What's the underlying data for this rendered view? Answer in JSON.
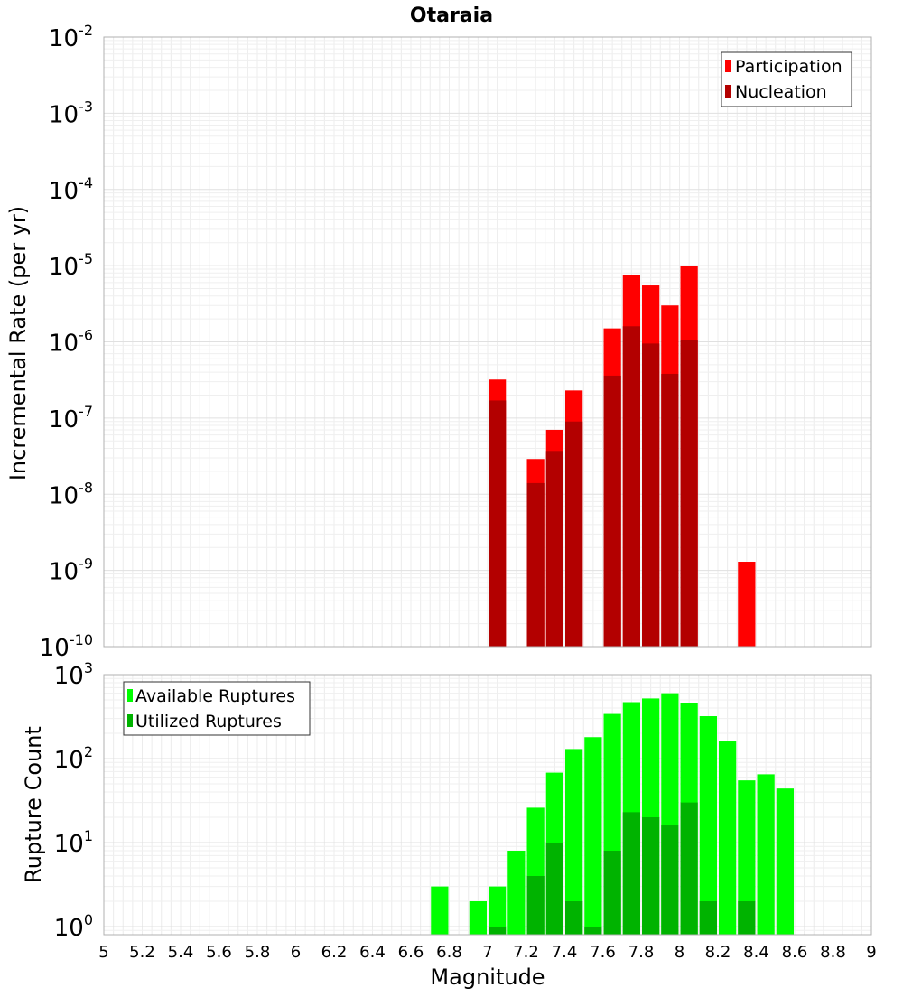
{
  "chart_data": [
    {
      "type": "bar",
      "title": "Otaraia",
      "xlabel": "",
      "ylabel": "Incremental Rate (per yr)",
      "yscale": "log",
      "ylim": [
        1e-10,
        0.01
      ],
      "xlim": [
        5,
        9
      ],
      "grid": true,
      "legend": {
        "placement": "top-right",
        "entries": [
          "Participation",
          "Nucleation"
        ]
      },
      "x": [
        7.05,
        7.25,
        7.35,
        7.45,
        7.65,
        7.75,
        7.85,
        7.95,
        8.05,
        8.35
      ],
      "series": [
        {
          "name": "Participation",
          "color": "#ff0000",
          "values": [
            3.2e-07,
            2.9e-08,
            7e-08,
            2.3e-07,
            1.5e-06,
            7.5e-06,
            5.5e-06,
            3e-06,
            1e-05,
            1.3e-09
          ]
        },
        {
          "name": "Nucleation",
          "color": "#b30000",
          "values": [
            1.7e-07,
            1.4e-08,
            3.7e-08,
            9e-08,
            3.6e-07,
            1.6e-06,
            9.5e-07,
            3.8e-07,
            1.05e-06,
            null
          ]
        }
      ],
      "y_ticks": [
        {
          "base": "10",
          "exp": "-10"
        },
        {
          "base": "10",
          "exp": "-9"
        },
        {
          "base": "10",
          "exp": "-8"
        },
        {
          "base": "10",
          "exp": "-7"
        },
        {
          "base": "10",
          "exp": "-6"
        },
        {
          "base": "10",
          "exp": "-5"
        },
        {
          "base": "10",
          "exp": "-4"
        },
        {
          "base": "10",
          "exp": "-3"
        },
        {
          "base": "10",
          "exp": "-2"
        }
      ]
    },
    {
      "type": "bar",
      "title": "",
      "xlabel": "Magnitude",
      "ylabel": "Rupture Count",
      "yscale": "log",
      "ylim": [
        0.8,
        1000
      ],
      "xlim": [
        5,
        9
      ],
      "grid": true,
      "legend": {
        "placement": "top-left",
        "entries": [
          "Available Ruptures",
          "Utilized Ruptures"
        ]
      },
      "x": [
        6.75,
        6.95,
        7.05,
        7.15,
        7.25,
        7.35,
        7.45,
        7.55,
        7.65,
        7.75,
        7.85,
        7.95,
        8.05,
        8.15,
        8.25,
        8.35,
        8.45,
        8.55
      ],
      "series": [
        {
          "name": "Available Ruptures",
          "color": "#00ff00",
          "values": [
            3,
            2,
            3,
            8,
            26,
            68,
            130,
            180,
            340,
            470,
            520,
            600,
            460,
            320,
            160,
            55,
            65,
            44
          ]
        },
        {
          "name": "Utilized Ruptures",
          "color": "#00b300",
          "values": [
            null,
            null,
            1,
            null,
            4,
            10,
            2,
            1,
            8,
            23,
            20,
            16,
            30,
            2,
            null,
            2,
            null,
            null
          ]
        }
      ],
      "x_ticks": [
        "5",
        "5.2",
        "5.4",
        "5.6",
        "5.8",
        "6",
        "6.2",
        "6.4",
        "6.6",
        "6.8",
        "7",
        "7.2",
        "7.4",
        "7.6",
        "7.8",
        "8",
        "8.2",
        "8.4",
        "8.6",
        "8.8",
        "9"
      ],
      "y_ticks": [
        {
          "base": "10",
          "exp": "0"
        },
        {
          "base": "10",
          "exp": "1"
        },
        {
          "base": "10",
          "exp": "2"
        },
        {
          "base": "10",
          "exp": "3"
        }
      ]
    }
  ]
}
